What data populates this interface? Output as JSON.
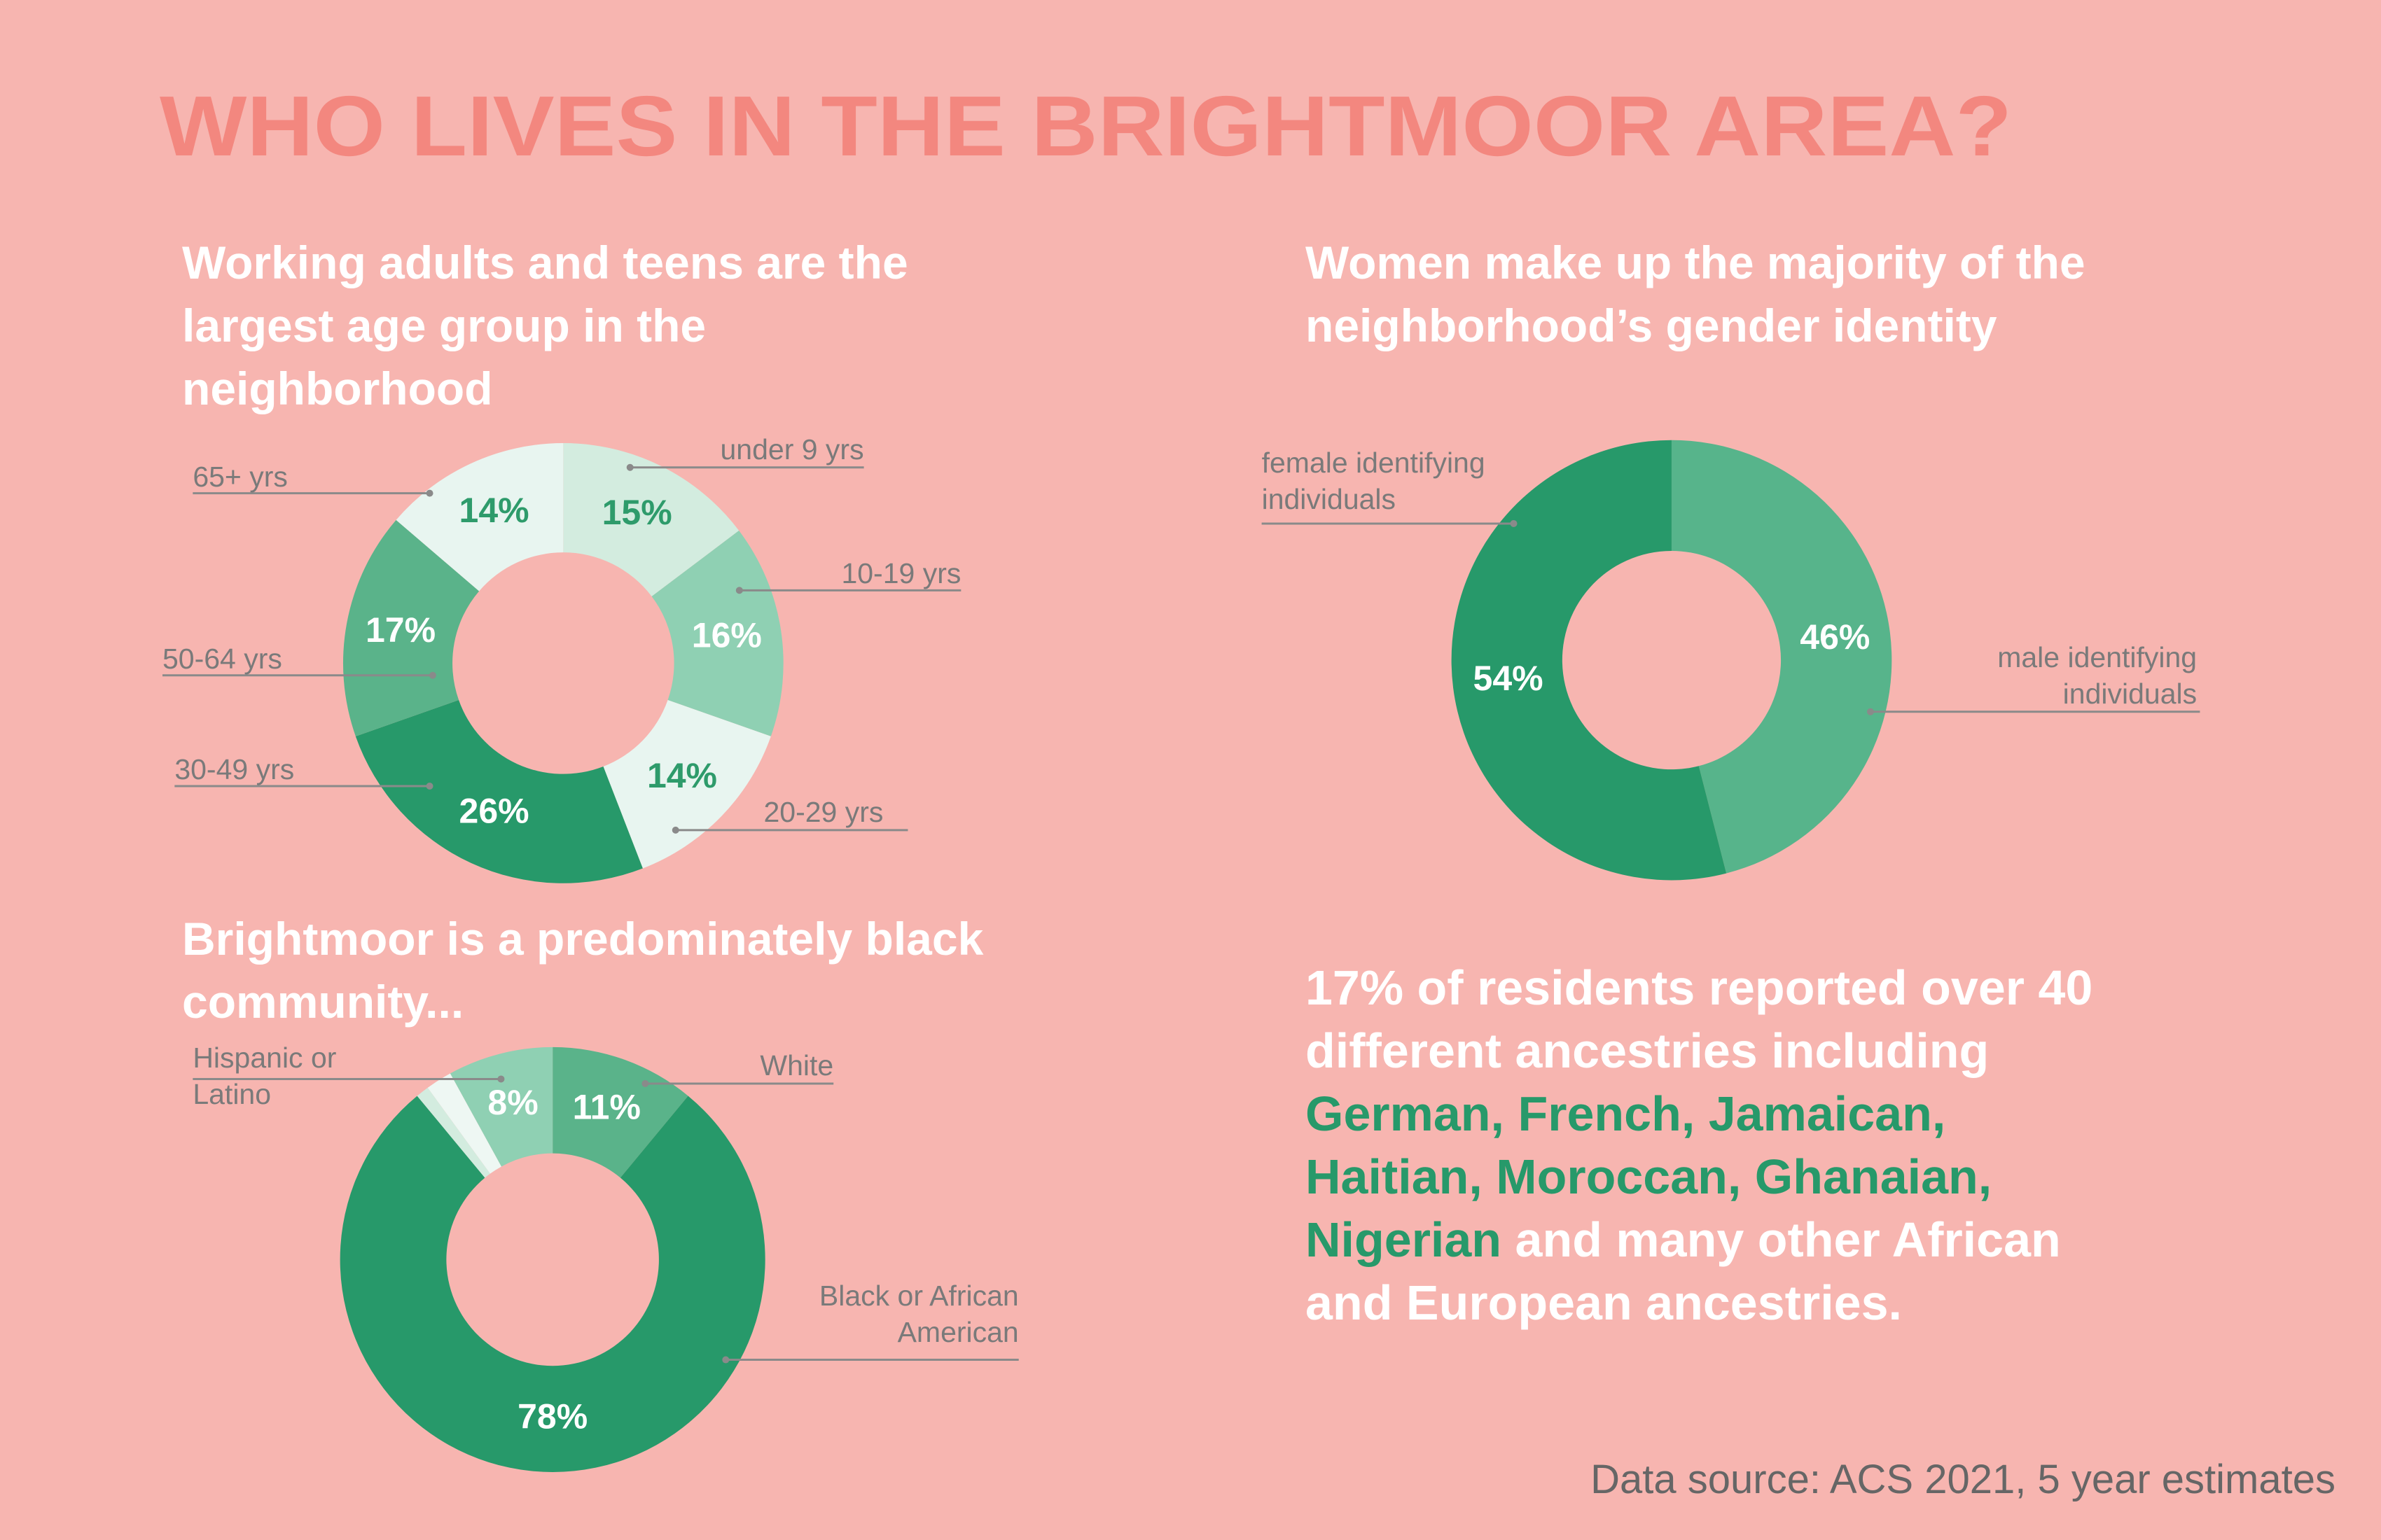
{
  "title": "WHO LIVES IN THE BRIGHTMOOR AREA?",
  "ancestry_note": {
    "before": "17% of residents reported over 40 different ancestries including ",
    "highlight": "German, French, Jamaican, Haitian, Moroccan, Ghanaian, Nigerian",
    "after": " and many other African and European ancestries."
  },
  "source": "Data source: ACS 2021, 5 year estimates",
  "chart_data": [
    {
      "type": "donut",
      "title": "Working adults and teens are the largest age group in the neighborhood",
      "categories": [
        "under 9 yrs",
        "10-19 yrs",
        "20-29 yrs",
        "30-49 yrs",
        "50-64 yrs",
        "65+ yrs"
      ],
      "values": [
        15,
        16,
        14,
        26,
        17,
        14
      ],
      "value_labels": [
        "15%",
        "16%",
        "14%",
        "26%",
        "17%",
        "14%"
      ],
      "colors": [
        "#d3ecdf",
        "#8fd0b3",
        "#e8f5f0",
        "#27996a",
        "#5ab38a",
        "#e8f5f0"
      ]
    },
    {
      "type": "donut",
      "title": "Women make up the majority of the neighborhood’s gender identity",
      "categories": [
        "male identifying individuals",
        "female identifying individuals"
      ],
      "values": [
        46,
        54
      ],
      "value_labels": [
        "46%",
        "54%"
      ],
      "colors": [
        "#57b48b",
        "#27996a"
      ]
    },
    {
      "type": "donut",
      "title": "Brightmoor is a predominately black community...",
      "categories": [
        "White",
        "Black or African American",
        null,
        null,
        "Hispanic or Latino"
      ],
      "values": [
        11,
        78,
        1,
        2,
        8
      ],
      "value_labels": [
        "11%",
        "78%",
        null,
        null,
        "8%"
      ],
      "colors": [
        "#5ab38a",
        "#27996a",
        "#d3ecdf",
        "#eef7f3",
        "#8fd0b3"
      ]
    }
  ]
}
